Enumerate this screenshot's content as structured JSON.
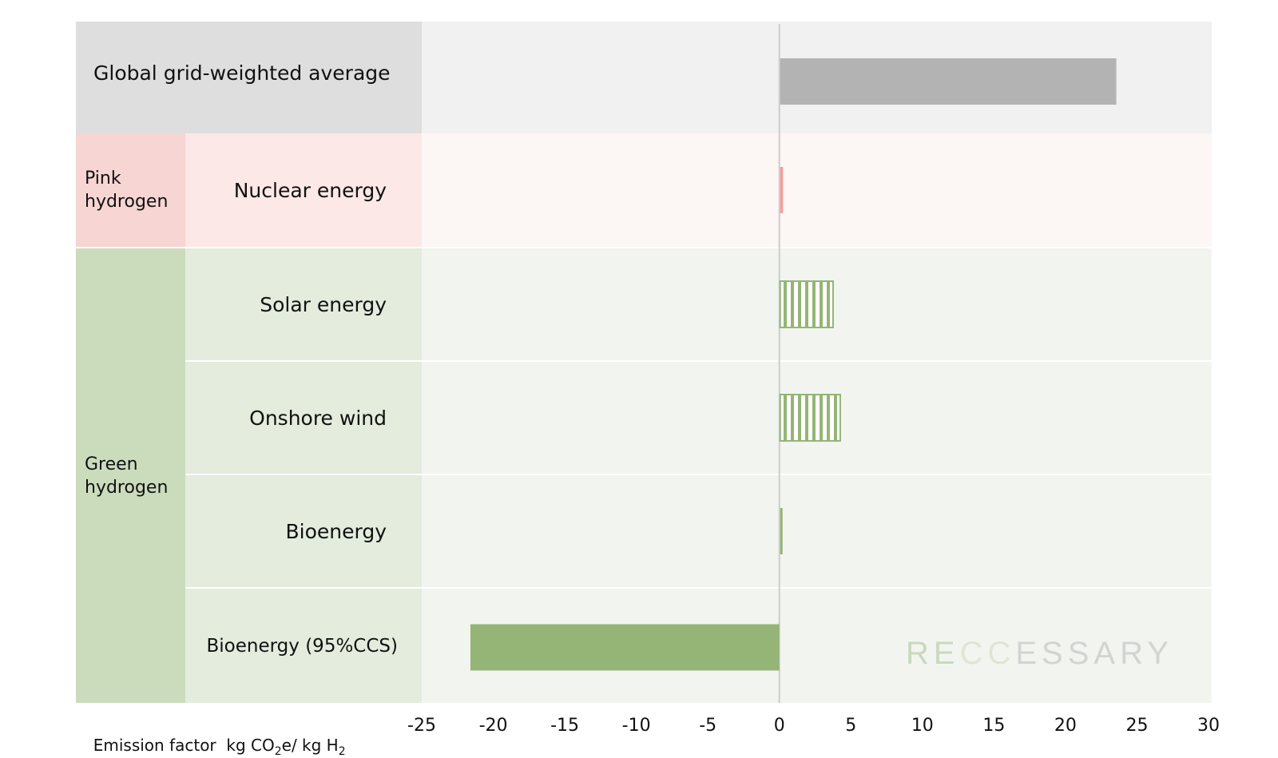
{
  "colors": {
    "grey_row_label": "#dedede",
    "grey_row_plot": "#f1f1f1",
    "grey_bar": "#b3b3b3",
    "pink_group": "#f6d5d3",
    "pink_row_label": "#fce8e6",
    "pink_row_plot": "#fcf6f5",
    "pink_bar": "#ef9f9c",
    "green_group": "#cbdcbd",
    "green_row_label": "#e3ecdd",
    "green_row_plot": "#f2f5ef",
    "green_bar": "#94b575",
    "zero_line": "#cccccc"
  },
  "groups": [
    {
      "label": "Pink\nhydrogen"
    },
    {
      "label": "Green\nhydrogen"
    }
  ],
  "watermark": {
    "part1": "R",
    "part2": "E",
    "part3": "CC",
    "part4": "ESSARY"
  },
  "xaxis": {
    "label_prefix": "Emission factor  kg CO",
    "label_sub1": "2",
    "label_mid": "e/ kg H",
    "label_sub2": "2"
  },
  "chart_data": {
    "type": "bar",
    "orientation": "horizontal",
    "categories": [
      "Global grid-weighted average",
      "Nuclear energy",
      "Solar energy",
      "Onshore wind",
      "Bioenergy",
      "Bioenergy (95%CCS)"
    ],
    "values": [
      23.5,
      0.2,
      3.7,
      4.2,
      0.1,
      -21.6
    ],
    "bar_styles": [
      "grey",
      "pink",
      "green-hatched",
      "green-hatched",
      "green",
      "green"
    ],
    "xlim": [
      -25,
      30
    ],
    "xticks": [
      "-25",
      "-20",
      "-15",
      "-10",
      "-5",
      "0",
      "5",
      "10",
      "15",
      "20",
      "25",
      "30"
    ],
    "grid": false
  }
}
